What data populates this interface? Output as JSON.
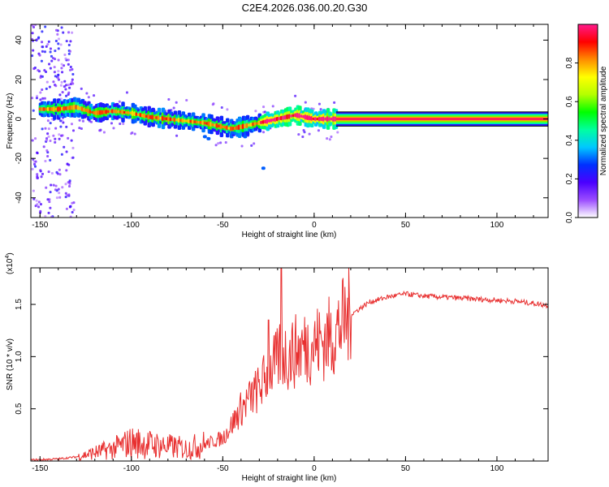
{
  "title": "C2E4.2026.036.00.20.G30",
  "chart_data": [
    {
      "type": "heatmap",
      "name": "spectrogram",
      "xlabel": "Height of straight line (km)",
      "ylabel": "Frequency (Hz)",
      "xlim": [
        -155,
        128
      ],
      "ylim": [
        -50,
        48
      ],
      "xticks": [
        -150,
        -100,
        -50,
        0,
        50,
        100
      ],
      "xtick_labels": [
        "-150",
        "-100",
        "-50",
        "0",
        "50",
        "100"
      ],
      "yticks": [
        -40,
        -20,
        0,
        20,
        40
      ],
      "ytick_labels": [
        "-40",
        "-20",
        "0",
        "20",
        "40"
      ],
      "ridge": {
        "x": [
          -150,
          -140,
          -130,
          -120,
          -110,
          -100,
          -90,
          -80,
          -70,
          -60,
          -50,
          -45,
          -40,
          -35,
          -30,
          -25,
          -20,
          -15,
          -10,
          -5,
          0,
          5,
          10,
          128
        ],
        "freq": [
          5,
          5,
          6,
          3,
          4,
          3,
          1,
          0,
          -1,
          -2,
          -4,
          -5,
          -4,
          -3,
          -2,
          -1,
          0,
          1,
          2,
          1,
          0,
          0,
          0,
          0
        ]
      },
      "colorbar": {
        "label": "Normalized spectral amplitude",
        "ticks": [
          0.0,
          0.2,
          0.4,
          0.6,
          0.8
        ],
        "tick_labels": [
          "0.0",
          "0.2",
          "0.4",
          "0.6",
          "0.8"
        ],
        "range": [
          0,
          1
        ],
        "colors": [
          "#ffffff",
          "#9b4dff",
          "#4a00ff",
          "#0030ff",
          "#00c8ff",
          "#00ffa0",
          "#00ff00",
          "#b4ff00",
          "#ffff00",
          "#ff8c00",
          "#ff0000",
          "#ff1a8c"
        ]
      }
    },
    {
      "type": "line",
      "name": "snr",
      "xlabel": "Height of straight line (km)",
      "ylabel": "SNR (10 * v/v)",
      "scale_label": "(x10",
      "scale_exp": "4",
      "scale_close": ")",
      "xlim": [
        -155,
        128
      ],
      "ylim": [
        0,
        1.85
      ],
      "xticks": [
        -150,
        -100,
        -50,
        0,
        50,
        100
      ],
      "xtick_labels": [
        "-150",
        "-100",
        "-50",
        "0",
        "50",
        "100"
      ],
      "yticks": [
        0.5,
        1.0,
        1.5
      ],
      "ytick_labels": [
        "0.5",
        "1.0",
        "1.5"
      ],
      "color": "#e83030",
      "x": [
        -155,
        -140,
        -130,
        -120,
        -110,
        -100,
        -90,
        -80,
        -70,
        -60,
        -50,
        -45,
        -40,
        -35,
        -30,
        -25,
        -20,
        -18,
        -15,
        -10,
        -5,
        0,
        5,
        10,
        15,
        20,
        30,
        40,
        50,
        60,
        70,
        80,
        90,
        100,
        110,
        120,
        128
      ],
      "values": [
        0.01,
        0.02,
        0.04,
        0.08,
        0.12,
        0.18,
        0.16,
        0.14,
        0.12,
        0.16,
        0.22,
        0.35,
        0.5,
        0.6,
        0.7,
        0.85,
        0.95,
        1.05,
        1.0,
        1.05,
        1.1,
        1.12,
        1.15,
        1.2,
        1.3,
        1.4,
        1.52,
        1.57,
        1.6,
        1.58,
        1.57,
        1.56,
        1.55,
        1.54,
        1.53,
        1.51,
        1.49
      ]
    }
  ]
}
